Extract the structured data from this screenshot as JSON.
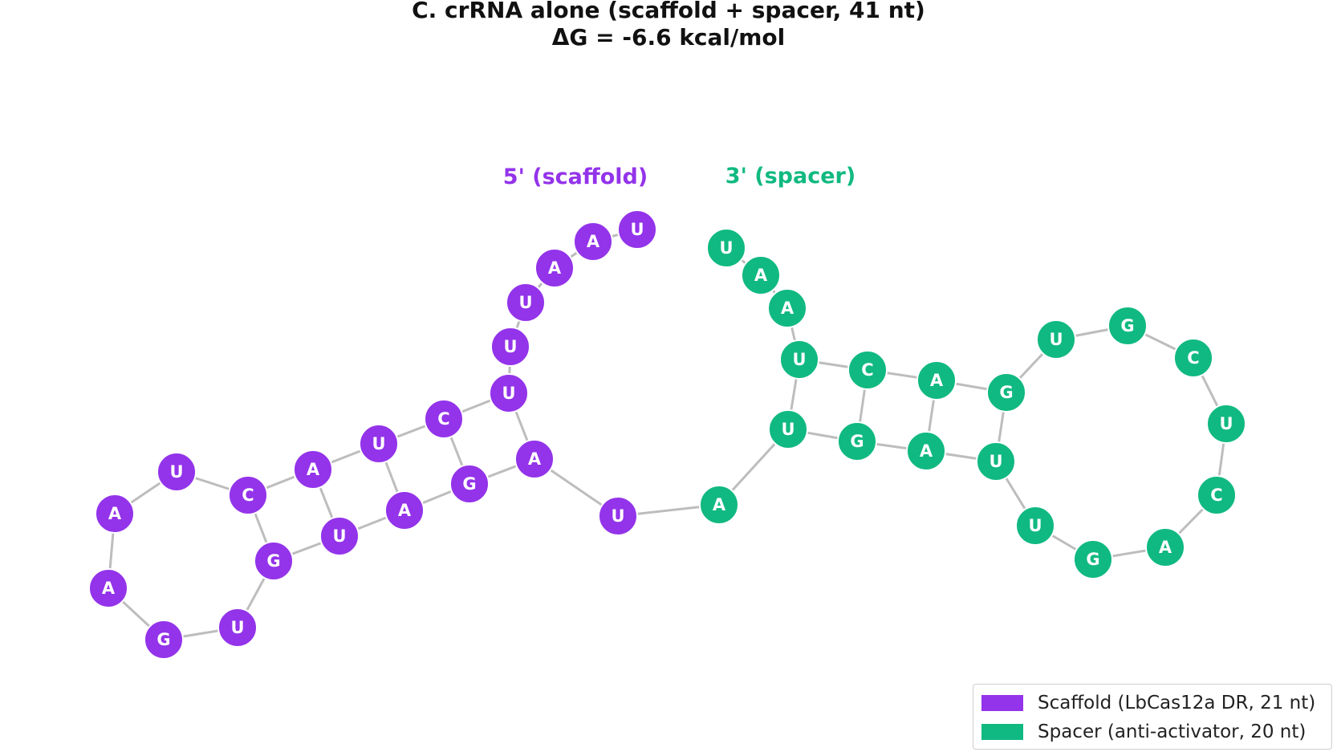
{
  "title": {
    "line1": "C.  crRNA alone (scaffold + spacer, 41 nt)",
    "line2": "ΔG = -6.6 kcal/mol"
  },
  "colors": {
    "scaffold": "#9333ea",
    "spacer": "#10b981",
    "bond": "#bdbdbd"
  },
  "end_labels": {
    "five_prime": "5' (scaffold)",
    "three_prime": "3' (spacer)"
  },
  "sequence": {
    "scaffold": [
      "U",
      "A",
      "A",
      "U",
      "U",
      "U",
      "C",
      "U",
      "A",
      "C",
      "U",
      "A",
      "A",
      "G",
      "U",
      "G",
      "U",
      "A",
      "G",
      "A",
      "U"
    ],
    "spacer": [
      "A",
      "U",
      "G",
      "A",
      "U",
      "U",
      "G",
      "A",
      "C",
      "U",
      "C",
      "G",
      "U",
      "G",
      "A",
      "C",
      "U",
      "A",
      "A",
      "U"
    ]
  },
  "legend": {
    "scaffold": "Scaffold (LbCas12a DR, 21 nt)",
    "spacer": "Spacer (anti-activator, 20 nt)"
  }
}
